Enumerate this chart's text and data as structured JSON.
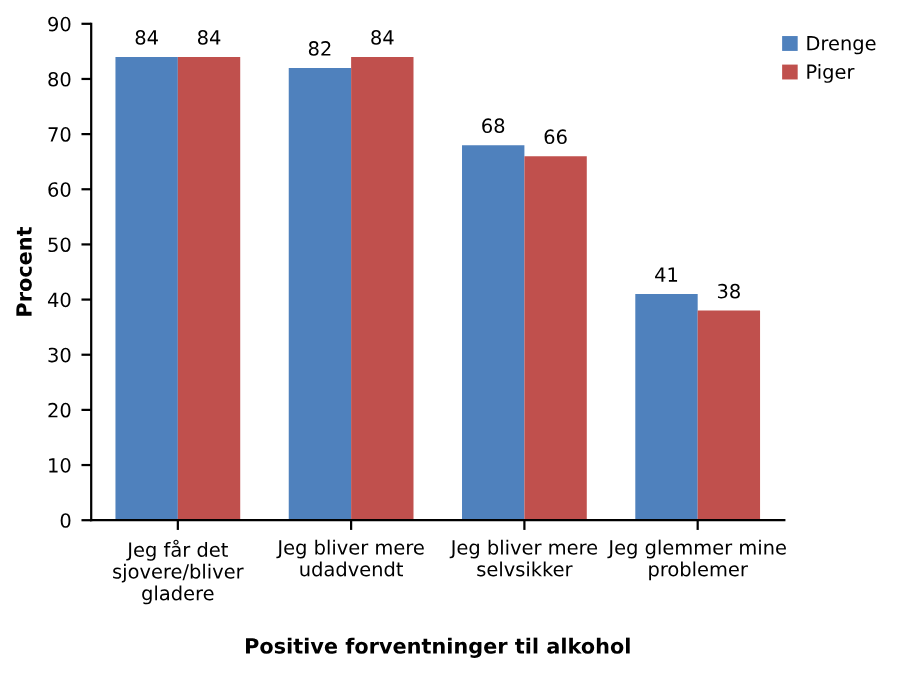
{
  "chart_data": {
    "type": "bar",
    "xlabel": "Positive forventninger til alkohol",
    "ylabel": "Procent",
    "categories": [
      "Jeg får det\nsjovere/bliver\ngladere",
      "Jeg bliver mere\nudadvendt",
      "Jeg bliver mere\nselvsikker",
      "Jeg glemmer mine\nproblemer"
    ],
    "series": [
      {
        "name": "Drenge",
        "color": "#4f81bd",
        "values": [
          84,
          82,
          68,
          41
        ]
      },
      {
        "name": "Piger",
        "color": "#c0504d",
        "values": [
          84,
          84,
          66,
          38
        ]
      }
    ],
    "ylim": [
      0,
      90
    ],
    "yticks": [
      0,
      10,
      20,
      30,
      40,
      50,
      60,
      70,
      80,
      90
    ],
    "data_labels": true,
    "grid": false,
    "legend": "top right"
  }
}
